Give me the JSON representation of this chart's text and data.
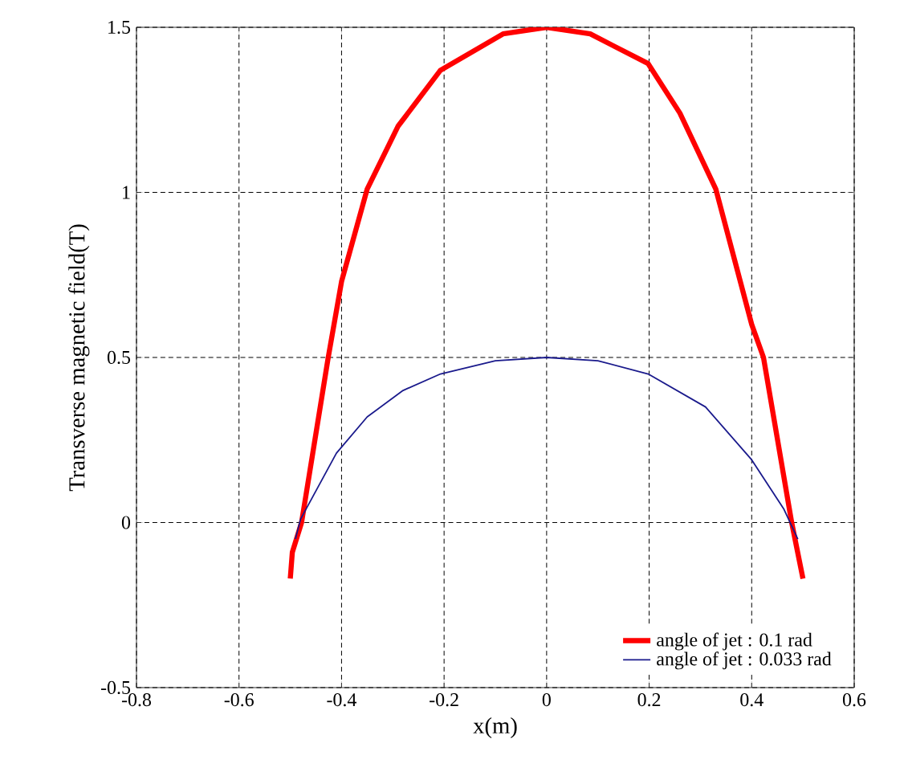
{
  "chart_data": {
    "type": "line",
    "xlabel": "x(m)",
    "ylabel": "Transverse magnetic field(T)",
    "xlim": [
      -0.8,
      0.6
    ],
    "ylim": [
      -0.5,
      1.5
    ],
    "xticks": [
      -0.8,
      -0.6,
      -0.4,
      -0.2,
      0,
      0.2,
      0.4,
      0.6
    ],
    "yticks": [
      -0.5,
      0,
      0.5,
      1,
      1.5
    ],
    "grid": true,
    "legend": "bottom right",
    "marker": "none",
    "line_style": "solid",
    "series": [
      {
        "name": "angle of jet : 0.1 rad",
        "color": "#ff0000",
        "x": [
          -0.5,
          -0.496,
          -0.478,
          -0.426,
          -0.4,
          -0.35,
          -0.29,
          -0.207,
          -0.085,
          0,
          0.085,
          0.198,
          0.26,
          0.33,
          0.4,
          0.423,
          0.478,
          0.5
        ],
        "values": [
          -0.17,
          -0.09,
          0,
          0.5,
          0.73,
          1.01,
          1.2,
          1.37,
          1.48,
          1.5,
          1.48,
          1.39,
          1.24,
          1.01,
          0.6,
          0.5,
          0,
          -0.17
        ]
      },
      {
        "name": "angle of jet : 0.033 rad",
        "color": "#1a1a8c",
        "x": [
          -0.49,
          -0.48,
          -0.41,
          -0.35,
          -0.28,
          -0.207,
          -0.1,
          0,
          0.1,
          0.198,
          0.31,
          0.4,
          0.463,
          0.49
        ],
        "values": [
          -0.05,
          0.01,
          0.21,
          0.32,
          0.4,
          0.45,
          0.49,
          0.5,
          0.49,
          0.45,
          0.35,
          0.19,
          0.04,
          -0.05
        ]
      }
    ]
  }
}
